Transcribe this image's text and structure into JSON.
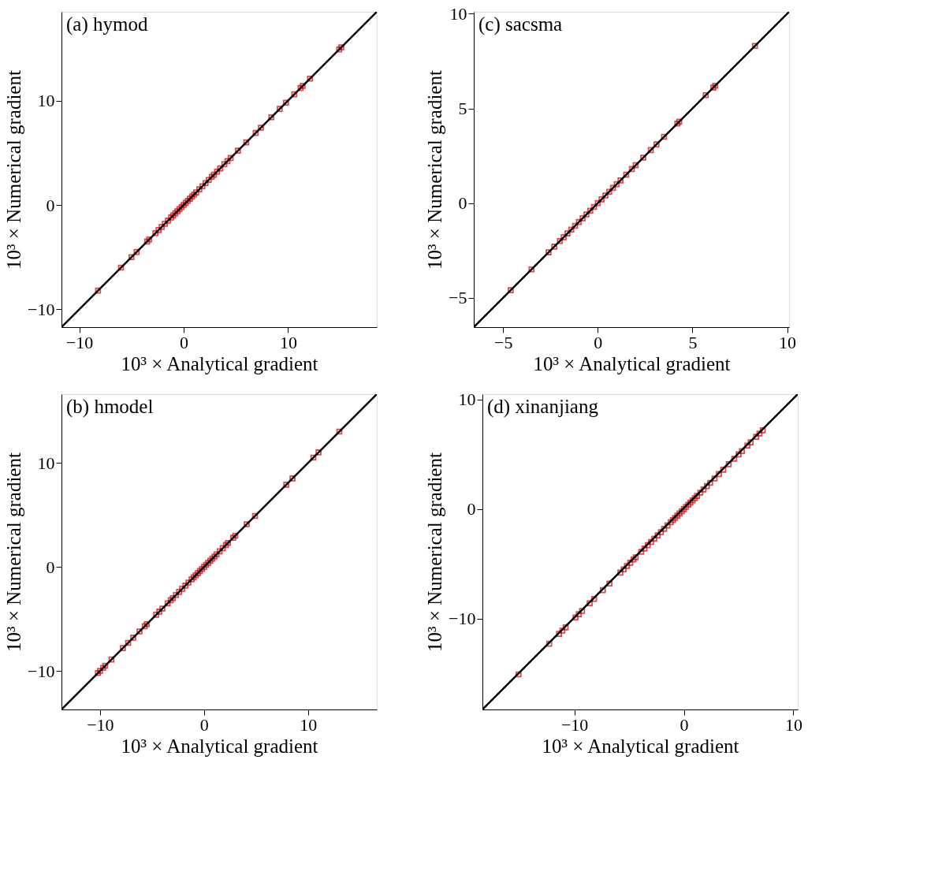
{
  "chart_data": [
    {
      "type": "scatter",
      "title": "(a) hymod",
      "xlabel": "10³ × Analytical gradient",
      "ylabel": "10³ × Numerical gradient",
      "xlim": [
        -11.7,
        18.5
      ],
      "ylim": [
        -11.7,
        18.5
      ],
      "xticks": [
        -10,
        0,
        10
      ],
      "yticks": [
        -10,
        0,
        10
      ],
      "grid": false,
      "series": [
        {
          "type": "scatter",
          "marker": "square",
          "color": "#cc0000",
          "x": [
            -8.2,
            -6,
            -5,
            -4.5,
            -3.5,
            -3.3,
            -2.7,
            -2.4,
            -2.1,
            -1.8,
            -1.5,
            -1.2,
            -1,
            -0.8,
            -0.6,
            -0.4,
            -0.2,
            0,
            0.2,
            0.4,
            0.6,
            0.8,
            1,
            1.2,
            1.5,
            1.8,
            2.1,
            2.4,
            2.7,
            2.9,
            3.2,
            3.5,
            3.9,
            4.2,
            4.5,
            5.2,
            6,
            6.9,
            7.4,
            8.4,
            9.2,
            9.8,
            10.6,
            11.2,
            11.4,
            12.1,
            14.9,
            15.1
          ],
          "values": [
            -8.2,
            -6,
            -5,
            -4.5,
            -3.5,
            -3.3,
            -2.7,
            -2.4,
            -2.1,
            -1.8,
            -1.5,
            -1.2,
            -1,
            -0.8,
            -0.6,
            -0.4,
            -0.2,
            0,
            0.2,
            0.4,
            0.6,
            0.8,
            1,
            1.2,
            1.5,
            1.8,
            2.1,
            2.4,
            2.7,
            2.9,
            3.2,
            3.5,
            3.9,
            4.2,
            4.5,
            5.2,
            6,
            6.9,
            7.4,
            8.4,
            9.2,
            9.8,
            10.6,
            11.2,
            11.4,
            12.1,
            14.9,
            15.1
          ]
        },
        {
          "type": "line",
          "marker": "none",
          "line_style": "solid",
          "color": "#000000",
          "x": [
            -11.7,
            18.5
          ],
          "values": [
            -11.7,
            18.5
          ]
        }
      ]
    },
    {
      "type": "scatter",
      "title": "(c) sacsma",
      "xlabel": "10³ × Analytical gradient",
      "ylabel": "10³ × Numerical gradient",
      "xlim": [
        -6.55,
        10.1
      ],
      "ylim": [
        -6.55,
        10.1
      ],
      "xticks": [
        -5,
        0,
        5,
        10
      ],
      "yticks": [
        -5,
        0,
        5,
        10
      ],
      "grid": false,
      "series": [
        {
          "type": "scatter",
          "marker": "square",
          "color": "#cc0000",
          "x": [
            -4.6,
            -3.5,
            -2.6,
            -2.3,
            -2,
            -1.8,
            -1.6,
            -1.4,
            -1.2,
            -1,
            -0.8,
            -0.6,
            -0.4,
            -0.2,
            0,
            0.2,
            0.4,
            0.6,
            0.8,
            1,
            1.2,
            1.5,
            1.8,
            2,
            2.4,
            2.8,
            3.1,
            3.5,
            4.2,
            4.3,
            5.7,
            6.1,
            6.2,
            8.3
          ],
          "values": [
            -4.6,
            -3.5,
            -2.6,
            -2.3,
            -2,
            -1.8,
            -1.6,
            -1.4,
            -1.2,
            -1,
            -0.8,
            -0.6,
            -0.4,
            -0.2,
            0,
            0.2,
            0.4,
            0.6,
            0.8,
            1,
            1.2,
            1.5,
            1.8,
            2,
            2.4,
            2.8,
            3.1,
            3.5,
            4.2,
            4.3,
            5.7,
            6.1,
            6.2,
            8.3
          ]
        },
        {
          "type": "line",
          "marker": "none",
          "line_style": "solid",
          "color": "#000000",
          "x": [
            -6.55,
            10.1
          ],
          "values": [
            -6.55,
            10.1
          ]
        }
      ]
    },
    {
      "type": "scatter",
      "title": "(b) hmodel",
      "xlabel": "10³ × Analytical gradient",
      "ylabel": "10³ × Numerical gradient",
      "xlim": [
        -13.7,
        16.6
      ],
      "ylim": [
        -13.7,
        16.6
      ],
      "xticks": [
        -10,
        0,
        10
      ],
      "yticks": [
        -10,
        0,
        10
      ],
      "grid": false,
      "series": [
        {
          "type": "scatter",
          "marker": "square",
          "color": "#cc0000",
          "x": [
            -10.2,
            -10,
            -9.7,
            -9.5,
            -8.9,
            -7.8,
            -7.3,
            -6.8,
            -6.2,
            -5.7,
            -5.5,
            -4.6,
            -4.3,
            -4,
            -3.5,
            -3.2,
            -3,
            -2.7,
            -2.4,
            -2.1,
            -1.8,
            -1.5,
            -1.2,
            -1,
            -0.8,
            -0.6,
            -0.4,
            -0.2,
            0,
            0.2,
            0.4,
            0.6,
            0.8,
            1,
            1.2,
            1.5,
            1.8,
            2.1,
            2.3,
            2.8,
            3,
            4.1,
            4.9,
            7.9,
            8.5,
            10.5,
            11,
            13
          ],
          "values": [
            -10.2,
            -10,
            -9.7,
            -9.5,
            -8.9,
            -7.8,
            -7.3,
            -6.8,
            -6.2,
            -5.7,
            -5.5,
            -4.6,
            -4.3,
            -4,
            -3.5,
            -3.2,
            -3,
            -2.7,
            -2.4,
            -2.1,
            -1.8,
            -1.5,
            -1.2,
            -1,
            -0.8,
            -0.6,
            -0.4,
            -0.2,
            0,
            0.2,
            0.4,
            0.6,
            0.8,
            1,
            1.2,
            1.5,
            1.8,
            2.1,
            2.3,
            2.8,
            3,
            4.1,
            4.9,
            7.9,
            8.5,
            10.5,
            11,
            13
          ]
        },
        {
          "type": "line",
          "marker": "none",
          "line_style": "solid",
          "color": "#000000",
          "x": [
            -13.7,
            16.6
          ],
          "values": [
            -13.7,
            16.6
          ]
        }
      ]
    },
    {
      "type": "scatter",
      "title": "(d) xinanjiang",
      "xlabel": "10³ × Analytical gradient",
      "ylabel": "10³ × Numerical gradient",
      "xlim": [
        -18.4,
        10.4
      ],
      "ylim": [
        -18.3,
        10.5
      ],
      "xticks": [
        -10,
        0,
        10
      ],
      "yticks": [
        -10,
        0,
        10
      ],
      "grid": false,
      "series": [
        {
          "type": "scatter",
          "marker": "square",
          "color": "#cc0000",
          "x": [
            -15.1,
            -12.3,
            -11.4,
            -11.1,
            -10.8,
            -9.9,
            -9.6,
            -9.3,
            -8.6,
            -8.2,
            -7.4,
            -6.8,
            -5.8,
            -5.5,
            -5.2,
            -4.9,
            -4.6,
            -4.4,
            -3.9,
            -3.6,
            -3.3,
            -3,
            -2.7,
            -2.4,
            -2.1,
            -1.8,
            -1.5,
            -1.2,
            -1,
            -0.8,
            -0.6,
            -0.4,
            -0.2,
            0,
            0.2,
            0.4,
            0.6,
            0.8,
            1,
            1.2,
            1.5,
            1.8,
            2.1,
            2.4,
            2.8,
            3.2,
            3.6,
            4.1,
            4.6,
            5,
            5.3,
            5.8,
            6.1,
            6.6,
            6.9,
            7.2
          ],
          "values": [
            -15.1,
            -12.3,
            -11.4,
            -11.1,
            -10.8,
            -9.9,
            -9.6,
            -9.3,
            -8.6,
            -8.2,
            -7.4,
            -6.8,
            -5.8,
            -5.5,
            -5.2,
            -4.9,
            -4.6,
            -4.4,
            -3.9,
            -3.6,
            -3.3,
            -3,
            -2.7,
            -2.4,
            -2.1,
            -1.8,
            -1.5,
            -1.2,
            -1,
            -0.8,
            -0.6,
            -0.4,
            -0.2,
            0,
            0.2,
            0.4,
            0.6,
            0.8,
            1,
            1.2,
            1.5,
            1.8,
            2.1,
            2.4,
            2.8,
            3.2,
            3.6,
            4.1,
            4.6,
            5,
            5.3,
            5.8,
            6.1,
            6.6,
            6.9,
            7.2
          ]
        },
        {
          "type": "line",
          "marker": "none",
          "line_style": "solid",
          "color": "#000000",
          "x": [
            -18.4,
            10.4
          ],
          "values": [
            -18.3,
            10.5
          ]
        }
      ]
    }
  ]
}
